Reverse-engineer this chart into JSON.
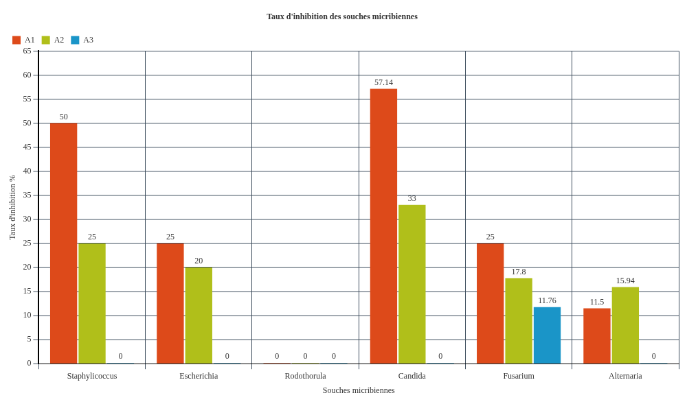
{
  "chart_data": {
    "type": "bar",
    "title": "Taux d'inhibition des souches micribiennes",
    "xlabel": "Souches micribiennes",
    "ylabel": "Taux d'inhibition %",
    "categories": [
      "Staphylicoccus",
      "Escherichia",
      "Rodothorula",
      "Candida",
      "Fusarium",
      "Alternaria"
    ],
    "series": [
      {
        "name": "A1",
        "color": "#dd4a1a",
        "values": [
          50,
          25,
          0,
          57.14,
          25,
          11.5
        ]
      },
      {
        "name": "A2",
        "color": "#b0bf1a",
        "values": [
          25,
          20,
          0,
          33,
          17.8,
          15.94
        ]
      },
      {
        "name": "A3",
        "color": "#1a95c8",
        "values": [
          0,
          0,
          0,
          0,
          11.76,
          0
        ]
      }
    ],
    "ylim": [
      0,
      65
    ],
    "yticks": [
      0,
      5,
      10,
      15,
      20,
      25,
      30,
      35,
      40,
      45,
      50,
      55,
      60,
      65
    ],
    "grid": true,
    "legend": "top left",
    "data_labels": true
  }
}
